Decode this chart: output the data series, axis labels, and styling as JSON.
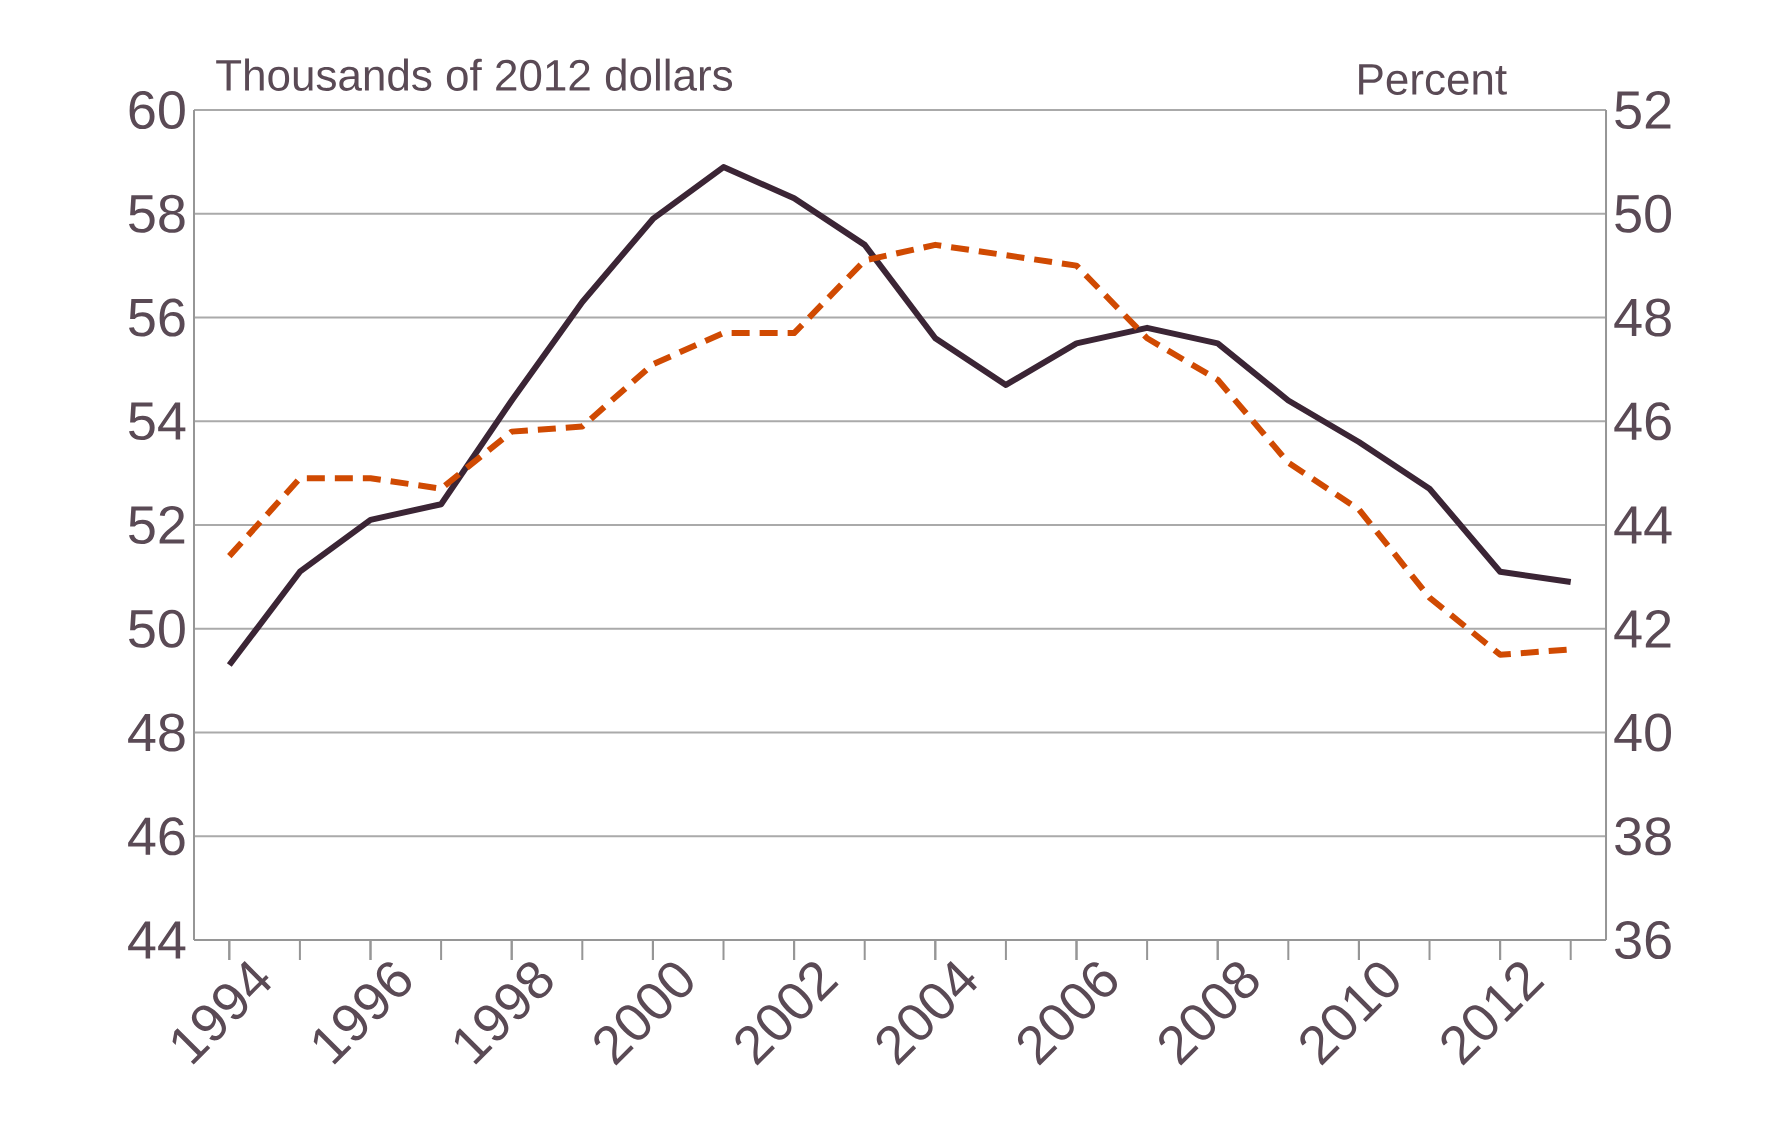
{
  "chart_data": {
    "type": "line",
    "ylabel": "Thousands of 2012 dollars",
    "y2label": "Percent",
    "x": [
      1994,
      1995,
      1996,
      1997,
      1998,
      1999,
      2000,
      2001,
      2002,
      2003,
      2004,
      2005,
      2006,
      2007,
      2008,
      2009,
      2010,
      2011,
      2012,
      2013
    ],
    "xlim": [
      1993.5,
      2013.5
    ],
    "xticks": [
      1994,
      1996,
      1998,
      2000,
      2002,
      2004,
      2006,
      2008,
      2010,
      2012
    ],
    "ylim": [
      44,
      60
    ],
    "yticks": [
      44,
      46,
      48,
      50,
      52,
      54,
      56,
      58,
      60
    ],
    "y2lim": [
      36,
      52
    ],
    "y2ticks": [
      36,
      38,
      40,
      42,
      44,
      46,
      48,
      50,
      52
    ],
    "grid": "y",
    "series": [
      {
        "color": "#3b2535",
        "line_style": "solid",
        "values": [
          49.3,
          51.1,
          52.1,
          52.4,
          54.4,
          56.3,
          57.9,
          58.9,
          58.3,
          57.4,
          55.6,
          54.7,
          55.5,
          55.8,
          55.5,
          54.4,
          53.6,
          52.7,
          51.1,
          50.9
        ]
      },
      {
        "color": "#d04a02",
        "line_style": "dashed",
        "axis": "y2",
        "values": [
          43.4,
          44.9,
          44.9,
          44.7,
          45.8,
          45.9,
          47.1,
          47.7,
          47.7,
          49.1,
          49.4,
          49.2,
          49.0,
          47.6,
          46.8,
          45.2,
          44.3,
          42.6,
          41.5,
          41.6
        ]
      }
    ]
  }
}
